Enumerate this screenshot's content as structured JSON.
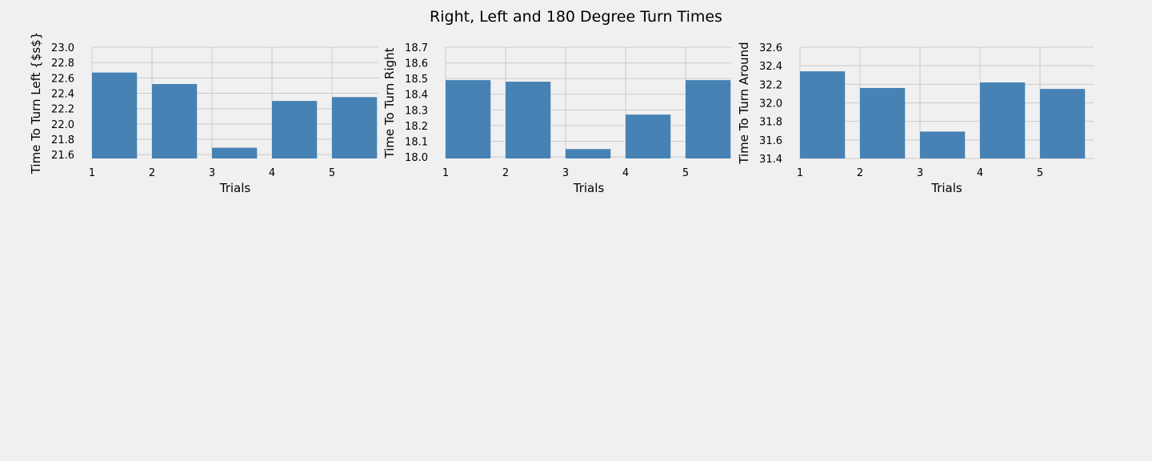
{
  "figure": {
    "title": "Right, Left and 180 Degree Turn Times"
  },
  "colors": {
    "background": "#f0f0f0",
    "bar": "#4682b4",
    "grid": "#cbcbcb"
  },
  "chart_data": [
    {
      "type": "bar",
      "title": "",
      "x": [
        1,
        2,
        3,
        4,
        5
      ],
      "values": [
        22.67,
        22.52,
        21.69,
        22.3,
        22.35
      ],
      "xlabel": "Trials",
      "ylabel": "Time To Turn Left {$s$}",
      "xticks": [
        "1",
        "2",
        "3",
        "4",
        "5"
      ],
      "yticks": [
        "21.6",
        "21.8",
        "22.0",
        "22.2",
        "22.4",
        "22.6",
        "22.8",
        "23.0"
      ],
      "ylim": [
        21.55,
        23.0
      ],
      "grid": true
    },
    {
      "type": "bar",
      "title": "",
      "x": [
        1,
        2,
        3,
        4,
        5
      ],
      "values": [
        18.49,
        18.48,
        18.05,
        18.27,
        18.49
      ],
      "xlabel": "Trials",
      "ylabel": "Time To Turn Right",
      "xticks": [
        "1",
        "2",
        "3",
        "4",
        "5"
      ],
      "yticks": [
        "18.0",
        "18.1",
        "18.2",
        "18.3",
        "18.4",
        "18.5",
        "18.6",
        "18.7"
      ],
      "ylim": [
        17.99,
        18.7
      ],
      "grid": true
    },
    {
      "type": "bar",
      "title": "",
      "x": [
        1,
        2,
        3,
        4,
        5
      ],
      "values": [
        32.34,
        32.16,
        31.69,
        32.22,
        32.15
      ],
      "xlabel": "Trials",
      "ylabel": "Time To Turn Around",
      "xticks": [
        "1",
        "2",
        "3",
        "4",
        "5"
      ],
      "yticks": [
        "31.4",
        "31.6",
        "31.8",
        "32.0",
        "32.2",
        "32.4",
        "32.6"
      ],
      "ylim": [
        31.4,
        32.6
      ],
      "grid": true
    }
  ]
}
